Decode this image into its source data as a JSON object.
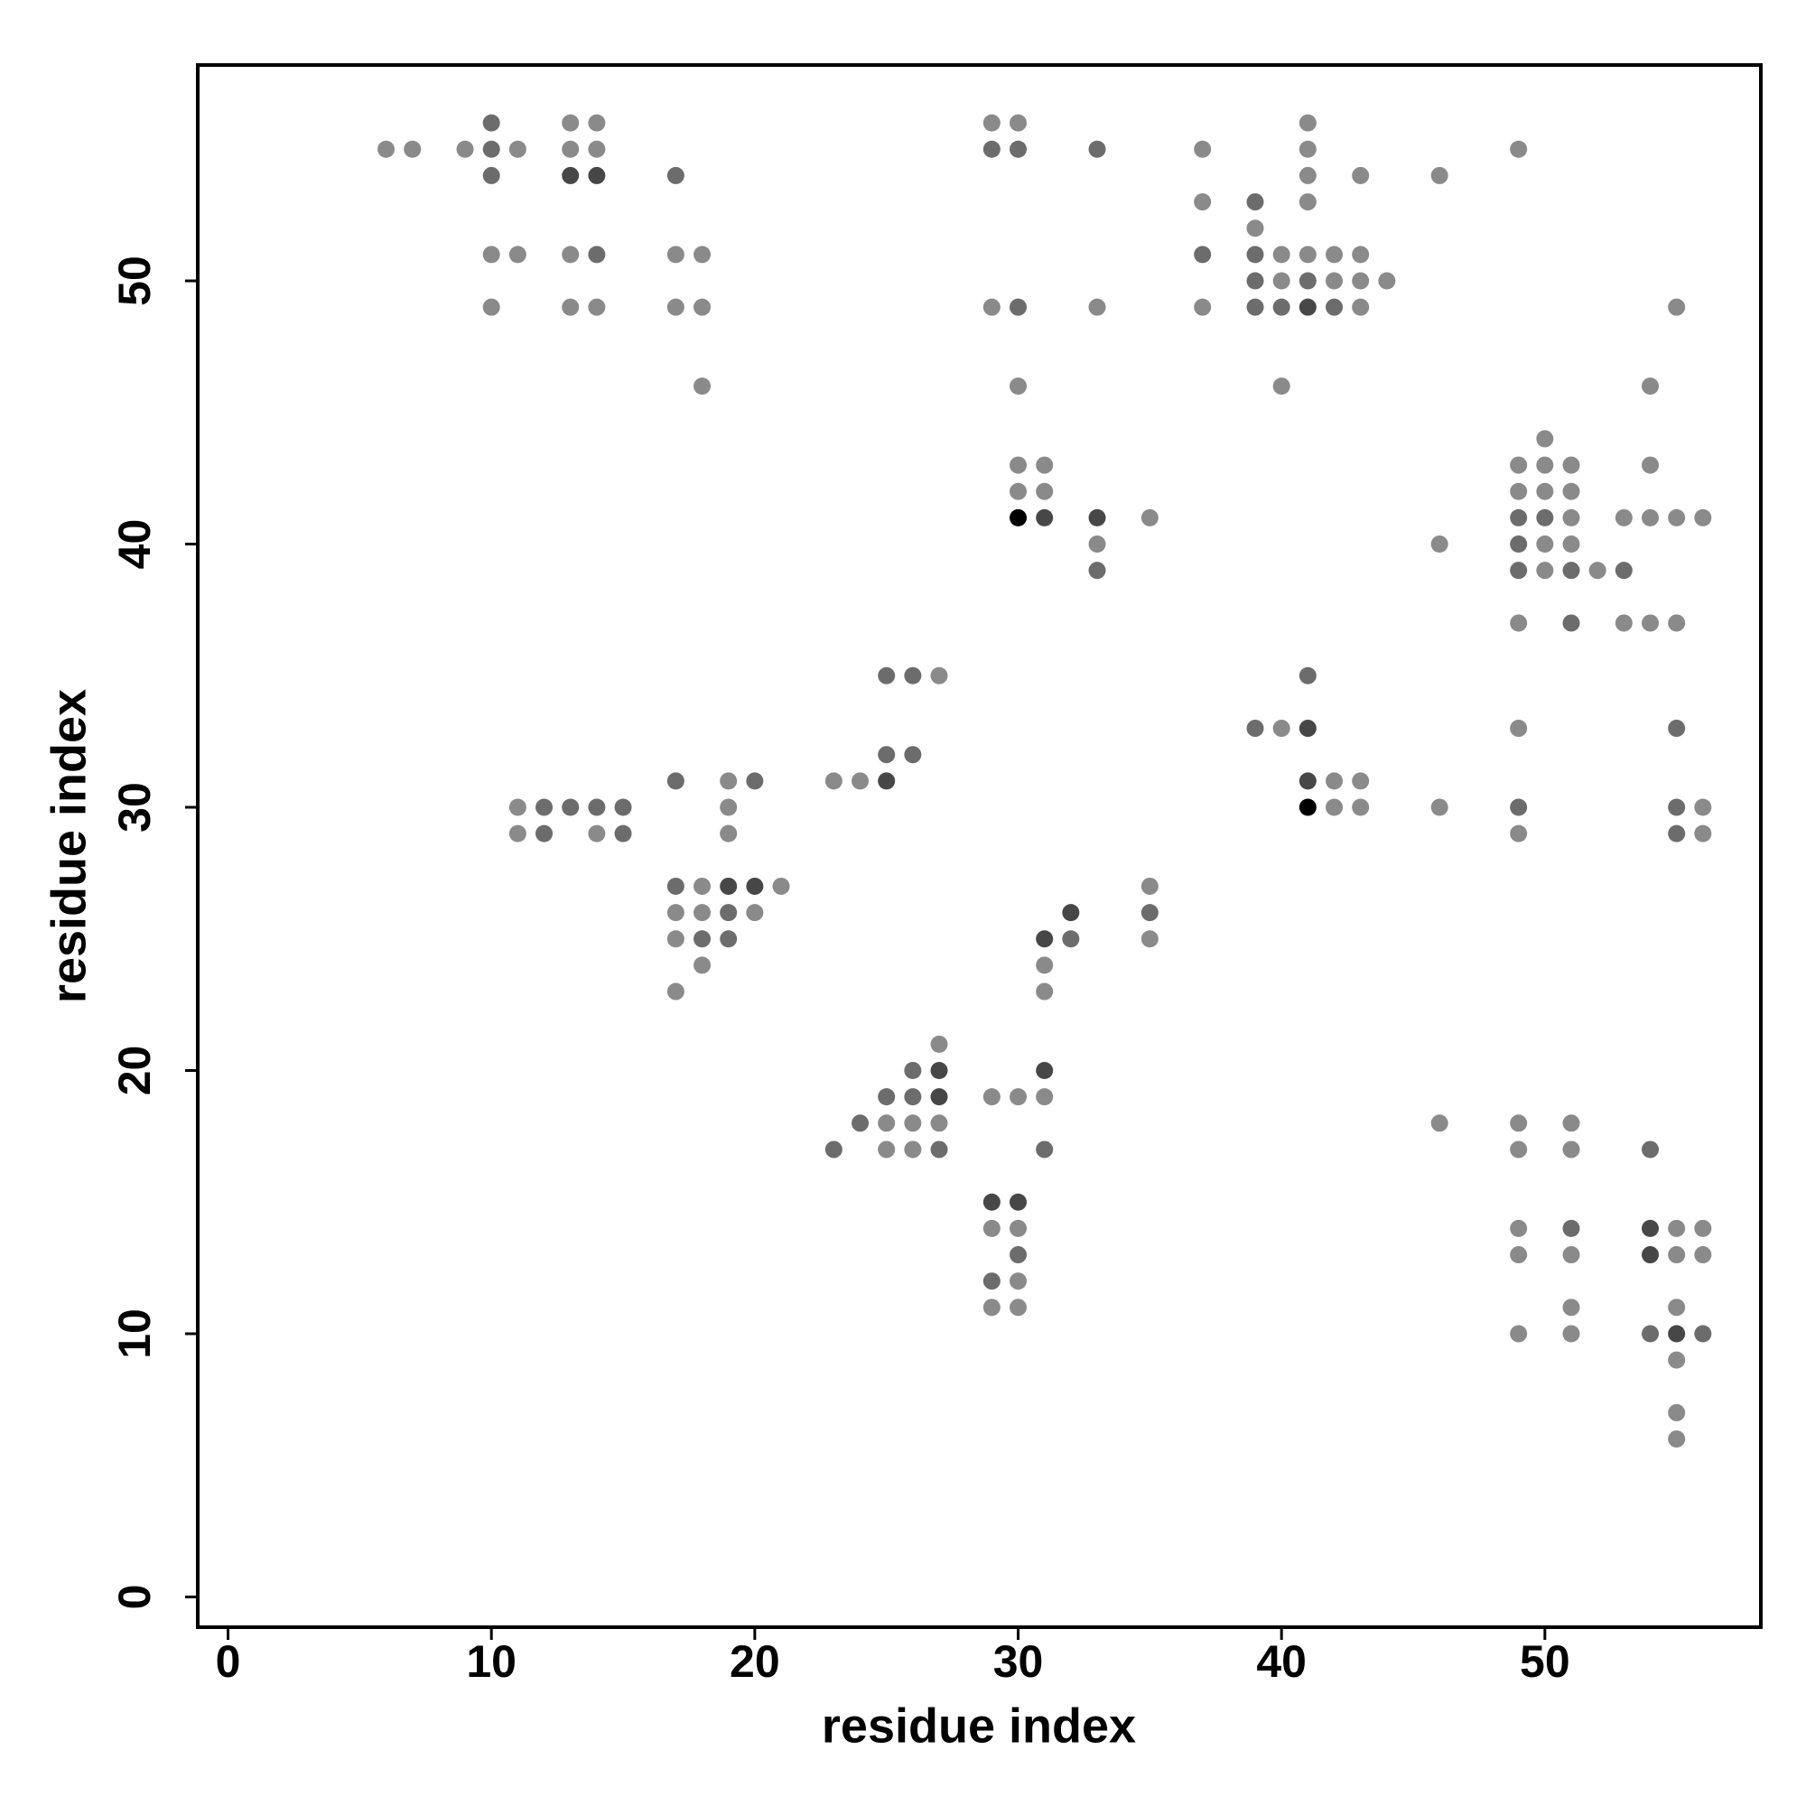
{
  "chart_data": {
    "type": "scatter",
    "x_label": "residue index",
    "y_label": "residue index",
    "xlim": [
      -1.15,
      58.2
    ],
    "ylim": [
      -1.15,
      58.2
    ],
    "xticks": [
      0,
      10,
      20,
      30,
      40,
      50
    ],
    "yticks": [
      0,
      10,
      20,
      30,
      40,
      50
    ],
    "grid": false,
    "series": [
      {
        "color": "#8a8a8a",
        "x": [
          13,
          14,
          29,
          30,
          41,
          6,
          7,
          9,
          11,
          13,
          14,
          37,
          41,
          49,
          41,
          43,
          46,
          37,
          41,
          39,
          10,
          11,
          13,
          17,
          18,
          40,
          41,
          42,
          43,
          40,
          42,
          43,
          44,
          10,
          13,
          14,
          17,
          18,
          29,
          33,
          37,
          43,
          55,
          18,
          30,
          40,
          54,
          50,
          30,
          31,
          49,
          50,
          51,
          54,
          30,
          31,
          49,
          50,
          51,
          35,
          51,
          53,
          54,
          55,
          56,
          33,
          46,
          50,
          51,
          50,
          52,
          49,
          53,
          54,
          55,
          27,
          40,
          49,
          19,
          23,
          24,
          42,
          43,
          11,
          19,
          42,
          43,
          46,
          56,
          11,
          14,
          19,
          49,
          56,
          18,
          21,
          35,
          17,
          18,
          20,
          17,
          35,
          18,
          31,
          17,
          31,
          27,
          29,
          30,
          31,
          25,
          26,
          27,
          46,
          49,
          51,
          25,
          26,
          49,
          51,
          29,
          30,
          49,
          55,
          56,
          49,
          51,
          55,
          56,
          30,
          29,
          30,
          51,
          55,
          49,
          51,
          55,
          55,
          55
        ],
        "values": [
          56,
          56,
          56,
          56,
          56,
          55,
          55,
          55,
          55,
          55,
          55,
          55,
          55,
          55,
          54,
          54,
          54,
          53,
          53,
          52,
          51,
          51,
          51,
          51,
          51,
          51,
          51,
          51,
          51,
          50,
          50,
          50,
          50,
          49,
          49,
          49,
          49,
          49,
          49,
          49,
          49,
          49,
          49,
          46,
          46,
          46,
          46,
          44,
          43,
          43,
          43,
          43,
          43,
          43,
          42,
          42,
          42,
          42,
          42,
          41,
          41,
          41,
          41,
          41,
          41,
          40,
          40,
          40,
          40,
          39,
          39,
          37,
          37,
          37,
          37,
          35,
          33,
          33,
          31,
          31,
          31,
          31,
          31,
          30,
          30,
          30,
          30,
          30,
          30,
          29,
          29,
          29,
          29,
          29,
          27,
          27,
          27,
          26,
          26,
          26,
          25,
          25,
          24,
          24,
          23,
          23,
          21,
          19,
          19,
          19,
          18,
          18,
          18,
          18,
          18,
          18,
          17,
          17,
          17,
          17,
          14,
          14,
          14,
          14,
          14,
          13,
          13,
          13,
          13,
          12,
          11,
          11,
          11,
          11,
          10,
          10,
          9,
          7,
          6
        ]
      },
      {
        "color": "#6c6c6c",
        "x": [
          10,
          10,
          29,
          30,
          33,
          10,
          17,
          39,
          14,
          37,
          39,
          39,
          41,
          30,
          39,
          40,
          42,
          49,
          50,
          49,
          33,
          49,
          51,
          53,
          51,
          25,
          26,
          41,
          39,
          55,
          25,
          26,
          17,
          20,
          12,
          13,
          14,
          15,
          49,
          55,
          12,
          15,
          55,
          17,
          19,
          35,
          18,
          19,
          32,
          26,
          25,
          26,
          24,
          23,
          27,
          31,
          54,
          51,
          30,
          29,
          54,
          56
        ],
        "values": [
          56,
          55,
          55,
          55,
          55,
          54,
          54,
          53,
          51,
          51,
          51,
          50,
          50,
          49,
          49,
          49,
          49,
          41,
          41,
          40,
          39,
          39,
          39,
          39,
          37,
          35,
          35,
          35,
          33,
          33,
          32,
          32,
          31,
          31,
          30,
          30,
          30,
          30,
          30,
          30,
          29,
          29,
          29,
          27,
          26,
          26,
          25,
          25,
          25,
          20,
          19,
          19,
          18,
          17,
          17,
          17,
          17,
          14,
          13,
          12,
          10,
          10
        ]
      },
      {
        "color": "#474747",
        "x": [
          13,
          14,
          41,
          31,
          33,
          41,
          25,
          41,
          19,
          20,
          32,
          31,
          27,
          31,
          27,
          29,
          30,
          54,
          54,
          55
        ],
        "values": [
          54,
          54,
          49,
          41,
          41,
          33,
          31,
          31,
          27,
          27,
          26,
          25,
          20,
          20,
          19,
          15,
          15,
          14,
          13,
          10
        ]
      },
      {
        "color": "#000000",
        "x": [
          30,
          41
        ],
        "values": [
          41,
          30
        ]
      }
    ]
  }
}
